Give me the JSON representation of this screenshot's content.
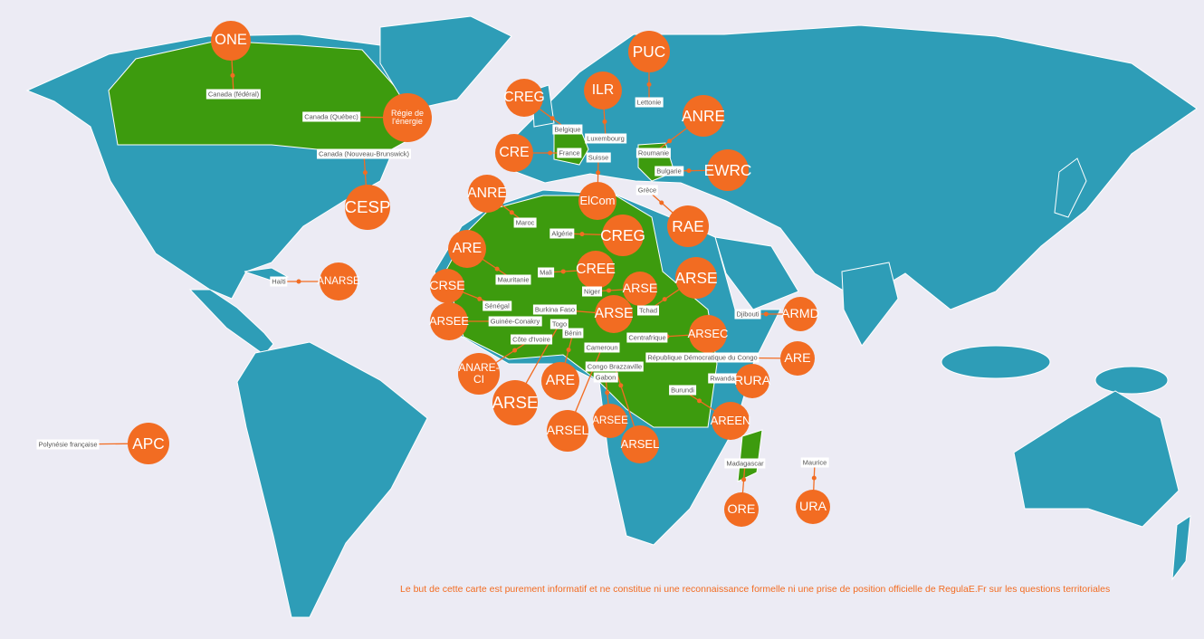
{
  "markers": [
    {
      "regulator": "ONE",
      "country": "Canada (fédéral)"
    },
    {
      "regulator": "Régie de l'énergie",
      "country": "Canada (Québec)"
    },
    {
      "regulator": "CESP",
      "country": "Canada (Nouveau-Brunswick)"
    },
    {
      "regulator": "CREG",
      "country": "Belgique"
    },
    {
      "regulator": "ILR",
      "country": "Luxembourg"
    },
    {
      "regulator": "PUC",
      "country": "Lettonie"
    },
    {
      "regulator": "ANRE",
      "country": "Roumanie"
    },
    {
      "regulator": "CRE",
      "country": "France"
    },
    {
      "regulator": "EWRC",
      "country": "Bulgarie"
    },
    {
      "regulator": "ElCom",
      "country": "Suisse"
    },
    {
      "regulator": "RAE",
      "country": "Grèce"
    },
    {
      "regulator": "ANRE",
      "country": "Maroc"
    },
    {
      "regulator": "CREG",
      "country": "Algérie"
    },
    {
      "regulator": "ARE",
      "country": "Mauritanie"
    },
    {
      "regulator": "CREE",
      "country": "Mali"
    },
    {
      "regulator": "ARSE",
      "country": "Niger"
    },
    {
      "regulator": "ARSE",
      "country": "Tchad"
    },
    {
      "regulator": "CRSE",
      "country": "Sénégal"
    },
    {
      "regulator": "ARSEE",
      "country": "Guinée-Conakry"
    },
    {
      "regulator": "ARSE",
      "country": "Burkina Faso"
    },
    {
      "regulator": "ARSEC",
      "country": "Centrafrique"
    },
    {
      "regulator": "ARMD",
      "country": "Djibouti"
    },
    {
      "regulator": "ARE",
      "country": "République Démocratique du Congo"
    },
    {
      "regulator": "ANARE-CI",
      "country": "Côte d'Ivoire"
    },
    {
      "regulator": "ARSE",
      "country": "Togo"
    },
    {
      "regulator": "ARE",
      "country": "Bénin"
    },
    {
      "regulator": "ARSEL",
      "country": "Cameroun"
    },
    {
      "regulator": "ARSEE",
      "country": "Gabon"
    },
    {
      "regulator": "ARSEL",
      "country": "Congo Brazzaville"
    },
    {
      "regulator": "RURA",
      "country": "Rwanda"
    },
    {
      "regulator": "AREEN",
      "country": "Burundi"
    },
    {
      "regulator": "ANARSE",
      "country": "Haïti"
    },
    {
      "regulator": "ORE",
      "country": "Madagascar"
    },
    {
      "regulator": "URA",
      "country": "Maurice"
    },
    {
      "regulator": "APC",
      "country": "Polynésie française"
    }
  ],
  "footnote": "Le but de cette carte est purement informatif et ne constitue ni une reconnaissance formelle ni une prise de position officielle de RegulaE.Fr sur les questions territoriales"
}
